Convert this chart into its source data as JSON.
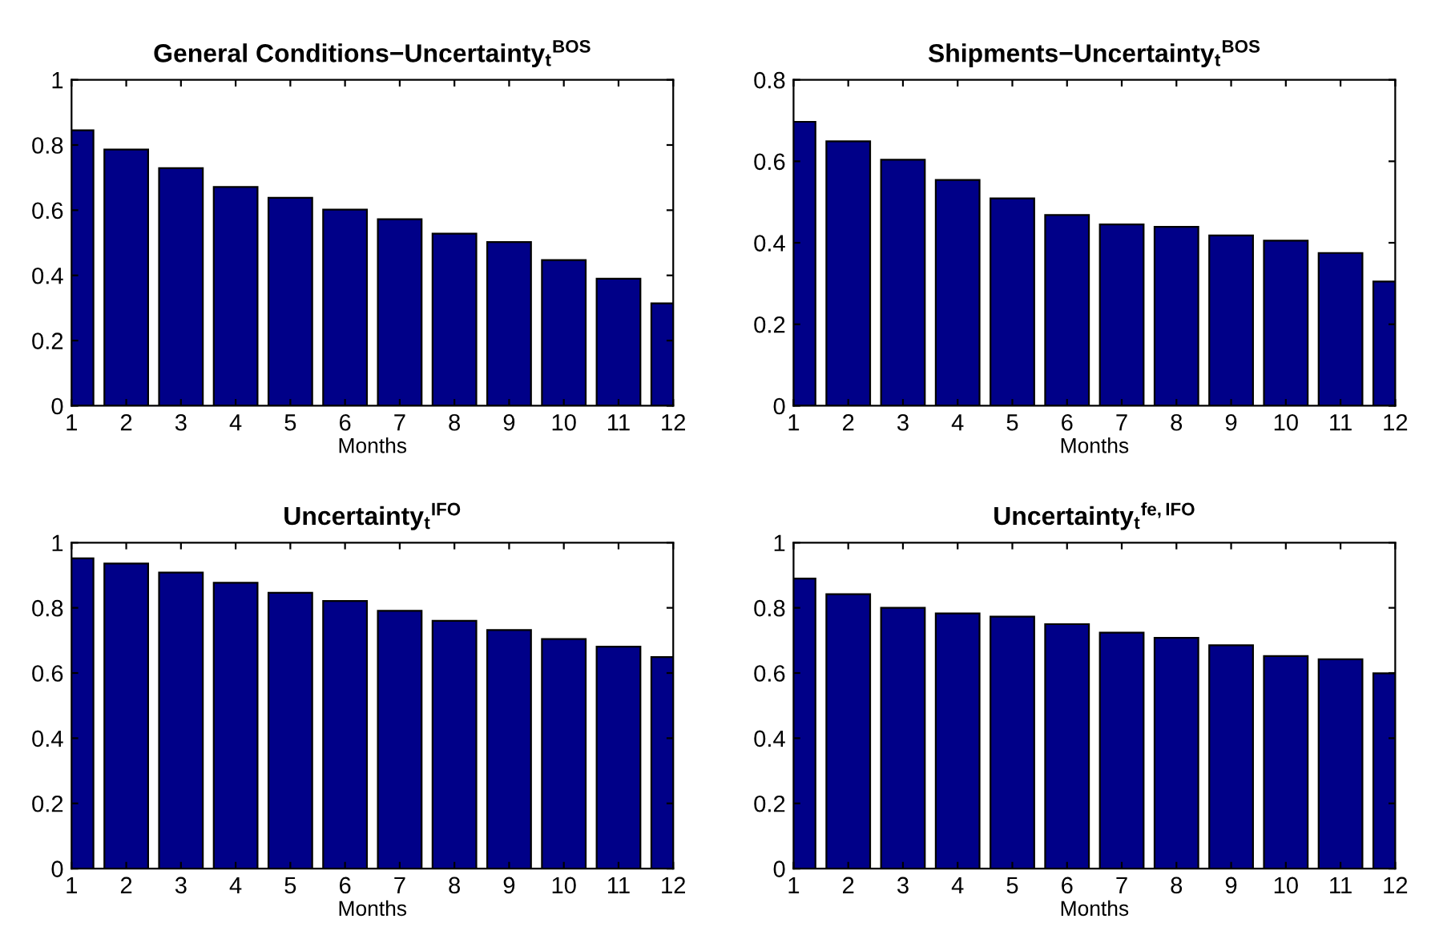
{
  "chart_data": [
    {
      "type": "bar",
      "title": "General Conditions−Uncertainty$_{t}$$^{BOS}$",
      "xlabel": "Months",
      "x": [
        1,
        2,
        3,
        4,
        5,
        6,
        7,
        8,
        9,
        10,
        11,
        12
      ],
      "values": [
        0.845,
        0.786,
        0.729,
        0.671,
        0.638,
        0.602,
        0.572,
        0.528,
        0.502,
        0.447,
        0.39,
        0.314
      ],
      "color": "#000088",
      "xlim": [
        1,
        12
      ],
      "xticks": [
        1,
        2,
        3,
        4,
        5,
        6,
        7,
        8,
        9,
        10,
        11,
        12
      ],
      "ylim": [
        0,
        1
      ],
      "yticks": [
        0,
        0.2,
        0.4,
        0.6,
        0.8,
        1
      ],
      "grid": false
    },
    {
      "type": "bar",
      "title": "Shipments−Uncertainty$_{t}$$^{BOS}$",
      "xlabel": "Months",
      "x": [
        1,
        2,
        3,
        4,
        5,
        6,
        7,
        8,
        9,
        10,
        11,
        12
      ],
      "values": [
        0.697,
        0.649,
        0.604,
        0.554,
        0.509,
        0.468,
        0.445,
        0.439,
        0.418,
        0.405,
        0.375,
        0.305
      ],
      "color": "#000088",
      "xlim": [
        1,
        12
      ],
      "xticks": [
        1,
        2,
        3,
        4,
        5,
        6,
        7,
        8,
        9,
        10,
        11,
        12
      ],
      "ylim": [
        0,
        0.8
      ],
      "yticks": [
        0,
        0.2,
        0.4,
        0.6,
        0.8
      ],
      "grid": false
    },
    {
      "type": "bar",
      "title": "Uncertainty$_{t}$$^{IFO}$",
      "xlabel": "Months",
      "x": [
        1,
        2,
        3,
        4,
        5,
        6,
        7,
        8,
        9,
        10,
        11,
        12
      ],
      "values": [
        0.952,
        0.936,
        0.908,
        0.877,
        0.846,
        0.821,
        0.791,
        0.76,
        0.732,
        0.704,
        0.681,
        0.649
      ],
      "color": "#000088",
      "xlim": [
        1,
        12
      ],
      "xticks": [
        1,
        2,
        3,
        4,
        5,
        6,
        7,
        8,
        9,
        10,
        11,
        12
      ],
      "ylim": [
        0,
        1
      ],
      "yticks": [
        0,
        0.2,
        0.4,
        0.6,
        0.8,
        1
      ],
      "grid": false
    },
    {
      "type": "bar",
      "title": "Uncertainty$_{t}$$^{fe,IFO}$",
      "xlabel": "Months",
      "x": [
        1,
        2,
        3,
        4,
        5,
        6,
        7,
        8,
        9,
        10,
        11,
        12
      ],
      "values": [
        0.89,
        0.842,
        0.8,
        0.783,
        0.773,
        0.75,
        0.724,
        0.708,
        0.685,
        0.652,
        0.642,
        0.599
      ],
      "color": "#000088",
      "xlim": [
        1,
        12
      ],
      "xticks": [
        1,
        2,
        3,
        4,
        5,
        6,
        7,
        8,
        9,
        10,
        11,
        12
      ],
      "ylim": [
        0,
        1
      ],
      "yticks": [
        0,
        0.2,
        0.4,
        0.6,
        0.8,
        1
      ],
      "grid": false
    }
  ]
}
